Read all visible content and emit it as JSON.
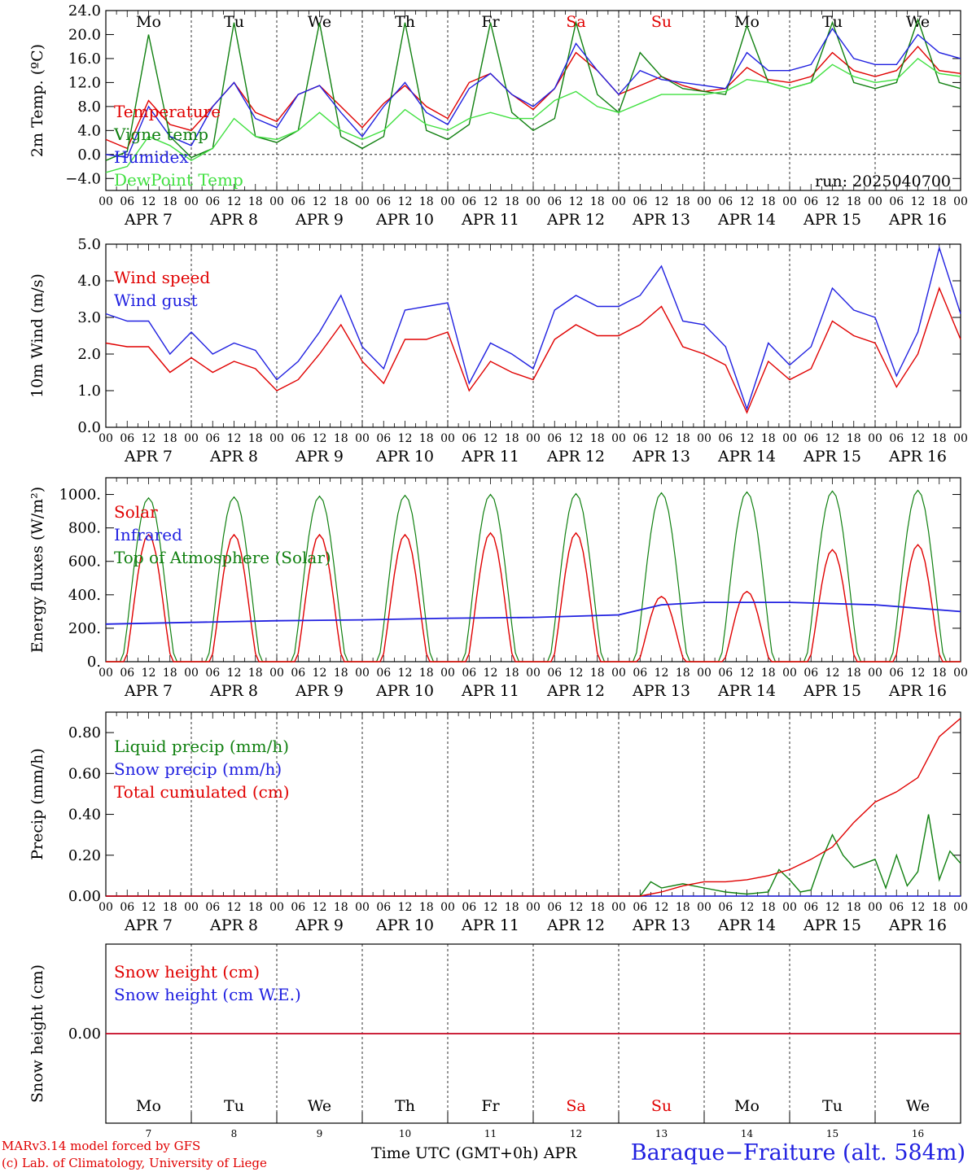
{
  "chart_data": [
    {
      "type": "line",
      "ylabel": "2m Temp. (ºC)",
      "ylim": [
        -6,
        24
      ],
      "yticks": [
        "24.0",
        "20.0",
        "16.0",
        "12.0",
        "8.0",
        "4.0",
        "0.0",
        "−4.0"
      ],
      "run_label": "run: 2025040700",
      "day_labels": [
        "Mo",
        "Tu",
        "We",
        "Th",
        "Fr",
        "Sa",
        "Su",
        "Mo",
        "Tu",
        "We"
      ],
      "date_labels": [
        "APR  7",
        "APR  8",
        "APR  9",
        "APR 10",
        "APR 11",
        "APR 12",
        "APR 13",
        "APR 14",
        "APR 15",
        "APR 16"
      ],
      "hour_labels": [
        "00",
        "06",
        "12",
        "18"
      ],
      "series": [
        {
          "name": "Temperature",
          "color": "#e00000",
          "x": [
            0,
            6,
            12,
            18,
            24,
            30,
            36,
            42,
            48,
            54,
            60,
            66,
            72,
            78,
            84,
            90,
            96,
            102,
            108,
            114,
            120,
            126,
            132,
            138,
            144,
            150,
            156,
            162,
            168,
            174,
            180,
            186,
            192,
            198,
            204,
            210,
            216,
            222,
            228,
            234,
            240
          ],
          "values": [
            2.5,
            1.0,
            9.0,
            5.0,
            4.0,
            8.0,
            12.0,
            7.0,
            5.5,
            10.0,
            11.5,
            8.0,
            4.5,
            8.5,
            11.5,
            8.0,
            6.0,
            12.0,
            13.5,
            10.0,
            7.5,
            11.0,
            17.0,
            14.0,
            10.0,
            11.5,
            13.0,
            11.5,
            10.5,
            11.0,
            14.5,
            12.5,
            12.0,
            13.0,
            17.0,
            14.0,
            13.0,
            14.0,
            18.0,
            14.0,
            13.5
          ]
        },
        {
          "name": "Vigne temp",
          "color": "#108010",
          "x": [
            0,
            6,
            12,
            18,
            24,
            30,
            36,
            42,
            48,
            54,
            60,
            66,
            72,
            78,
            84,
            90,
            96,
            102,
            108,
            114,
            120,
            126,
            132,
            138,
            144,
            150,
            156,
            162,
            168,
            174,
            180,
            186,
            192,
            198,
            204,
            210,
            216,
            222,
            228,
            234,
            240
          ],
          "values": [
            -1.0,
            0.5,
            20.0,
            3.0,
            -0.5,
            1.0,
            22.0,
            3.0,
            2.0,
            4.0,
            22.0,
            3.0,
            1.0,
            3.0,
            22.0,
            4.0,
            2.5,
            5.0,
            22.0,
            7.0,
            4.0,
            6.0,
            22.0,
            10.0,
            7.0,
            17.0,
            13.0,
            11.0,
            10.5,
            10.0,
            21.5,
            12.0,
            11.0,
            12.0,
            22.0,
            12.0,
            11.0,
            12.0,
            22.5,
            12.0,
            11.0
          ]
        },
        {
          "name": "Humidex",
          "color": "#2020e0",
          "x": [
            0,
            6,
            12,
            18,
            24,
            30,
            36,
            42,
            48,
            54,
            60,
            66,
            72,
            78,
            84,
            90,
            96,
            102,
            108,
            114,
            120,
            126,
            132,
            138,
            144,
            150,
            156,
            162,
            168,
            174,
            180,
            186,
            192,
            198,
            204,
            210,
            216,
            222,
            228,
            234,
            240
          ],
          "values": [
            0.0,
            -0.5,
            8.0,
            3.0,
            1.5,
            8.0,
            12.0,
            6.0,
            4.5,
            10.0,
            11.5,
            7.0,
            3.0,
            8.0,
            12.0,
            7.0,
            5.0,
            11.0,
            13.5,
            10.0,
            8.0,
            11.0,
            18.5,
            14.0,
            10.0,
            14.0,
            12.5,
            12.0,
            11.5,
            11.0,
            17.0,
            14.0,
            14.0,
            15.0,
            21.0,
            16.0,
            15.0,
            15.0,
            20.0,
            17.0,
            16.0
          ]
        },
        {
          "name": "DewPoint Temp",
          "color": "#40e040",
          "x": [
            0,
            6,
            12,
            18,
            24,
            30,
            36,
            42,
            48,
            54,
            60,
            66,
            72,
            78,
            84,
            90,
            96,
            102,
            108,
            114,
            120,
            126,
            132,
            138,
            144,
            150,
            156,
            162,
            168,
            174,
            180,
            186,
            192,
            198,
            204,
            210,
            216,
            222,
            228,
            234,
            240
          ],
          "values": [
            -3.0,
            -2.0,
            3.0,
            1.5,
            -1.0,
            1.0,
            6.0,
            3.0,
            2.5,
            4.0,
            7.0,
            4.0,
            2.5,
            4.0,
            7.5,
            5.0,
            4.0,
            6.0,
            7.0,
            6.0,
            6.0,
            9.0,
            10.5,
            8.0,
            7.0,
            8.5,
            10.0,
            10.0,
            10.0,
            10.5,
            12.5,
            12.0,
            11.0,
            12.0,
            15.0,
            13.0,
            12.0,
            12.5,
            16.0,
            13.5,
            13.0
          ]
        }
      ]
    },
    {
      "type": "line",
      "ylabel": "10m Wind (m/s)",
      "ylim": [
        0,
        5
      ],
      "yticks": [
        "5.0",
        "4.0",
        "3.0",
        "2.0",
        "1.0",
        "0.0"
      ],
      "date_labels": [
        "APR  7",
        "APR  8",
        "APR  9",
        "APR 10",
        "APR 11",
        "APR 12",
        "APR 13",
        "APR 14",
        "APR 15",
        "APR 16"
      ],
      "hour_labels": [
        "00",
        "06",
        "12",
        "18"
      ],
      "series": [
        {
          "name": "Wind speed",
          "color": "#e00000",
          "x": [
            0,
            6,
            12,
            18,
            24,
            30,
            36,
            42,
            48,
            54,
            60,
            66,
            72,
            78,
            84,
            90,
            96,
            102,
            108,
            114,
            120,
            126,
            132,
            138,
            144,
            150,
            156,
            162,
            168,
            174,
            180,
            186,
            192,
            198,
            204,
            210,
            216,
            222,
            228,
            234,
            240
          ],
          "values": [
            2.3,
            2.2,
            2.2,
            1.5,
            1.9,
            1.5,
            1.8,
            1.6,
            1.0,
            1.3,
            2.0,
            2.8,
            1.8,
            1.2,
            2.4,
            2.4,
            2.6,
            1.0,
            1.8,
            1.5,
            1.3,
            2.4,
            2.8,
            2.5,
            2.5,
            2.8,
            3.3,
            2.2,
            2.0,
            1.7,
            0.4,
            1.8,
            1.3,
            1.6,
            2.9,
            2.5,
            2.3,
            1.1,
            2.0,
            3.8,
            2.4
          ]
        },
        {
          "name": "Wind gust",
          "color": "#2020e0",
          "x": [
            0,
            6,
            12,
            18,
            24,
            30,
            36,
            42,
            48,
            54,
            60,
            66,
            72,
            78,
            84,
            90,
            96,
            102,
            108,
            114,
            120,
            126,
            132,
            138,
            144,
            150,
            156,
            162,
            168,
            174,
            180,
            186,
            192,
            198,
            204,
            210,
            216,
            222,
            228,
            234,
            240
          ],
          "values": [
            3.1,
            2.9,
            2.9,
            2.0,
            2.6,
            2.0,
            2.3,
            2.1,
            1.3,
            1.8,
            2.6,
            3.6,
            2.2,
            1.6,
            3.2,
            3.3,
            3.4,
            1.2,
            2.3,
            2.0,
            1.6,
            3.2,
            3.6,
            3.3,
            3.3,
            3.6,
            4.4,
            2.9,
            2.8,
            2.2,
            0.5,
            2.3,
            1.7,
            2.2,
            3.8,
            3.2,
            3.0,
            1.4,
            2.6,
            4.9,
            3.1
          ]
        }
      ]
    },
    {
      "type": "line",
      "ylabel": "Energy fluxes (W/m²)",
      "ylim": [
        0,
        1100
      ],
      "yticks": [
        "1000.",
        "800.",
        "600.",
        "400.",
        "200.",
        "0."
      ],
      "date_labels": [
        "APR  7",
        "APR  8",
        "APR  9",
        "APR 10",
        "APR 11",
        "APR 12",
        "APR 13",
        "APR 14",
        "APR 15",
        "APR 16"
      ],
      "hour_labels": [
        "00",
        "06",
        "12",
        "18"
      ],
      "series": [
        {
          "name": "Solar",
          "color": "#e00000",
          "peak_values": [
            760,
            760,
            760,
            760,
            770,
            770,
            390,
            420,
            670,
            700
          ]
        },
        {
          "name": "Infrared",
          "color": "#2020e0",
          "x": [
            0,
            24,
            48,
            72,
            96,
            120,
            144,
            156,
            168,
            192,
            216,
            240
          ],
          "values": [
            225,
            235,
            245,
            250,
            260,
            265,
            280,
            340,
            355,
            355,
            340,
            300
          ]
        },
        {
          "name": "Top of Atmosphere (Solar)",
          "color": "#108010",
          "peak_values": [
            980,
            985,
            990,
            995,
            1000,
            1005,
            1010,
            1015,
            1020,
            1025
          ]
        }
      ]
    },
    {
      "type": "line",
      "ylabel": "Precip (mm/h)",
      "ylim": [
        0,
        0.9
      ],
      "yticks": [
        "0.80",
        "0.60",
        "0.40",
        "0.20",
        "0.00"
      ],
      "date_labels": [
        "APR  7",
        "APR  8",
        "APR  9",
        "APR 10",
        "APR 11",
        "APR 12",
        "APR 13",
        "APR 14",
        "APR 15",
        "APR 16"
      ],
      "hour_labels": [
        "00",
        "06",
        "12",
        "18"
      ],
      "series": [
        {
          "name": "Liquid precip (mm/h)",
          "color": "#108010",
          "x": [
            0,
            150,
            153,
            156,
            162,
            168,
            174,
            180,
            186,
            189,
            192,
            195,
            198,
            201,
            204,
            207,
            210,
            213,
            216,
            219,
            222,
            225,
            228,
            231,
            234,
            237,
            240
          ],
          "values": [
            0,
            0,
            0.07,
            0.04,
            0.06,
            0.04,
            0.02,
            0.01,
            0.02,
            0.13,
            0.08,
            0.02,
            0.03,
            0.18,
            0.3,
            0.2,
            0.14,
            0.16,
            0.18,
            0.04,
            0.2,
            0.05,
            0.12,
            0.4,
            0.08,
            0.22,
            0.16
          ]
        },
        {
          "name": "Snow precip (mm/h)",
          "color": "#2020e0",
          "x": [
            0,
            240
          ],
          "values": [
            0,
            0
          ]
        },
        {
          "name": "Total cumulated (cm)",
          "color": "#e00000",
          "x": [
            0,
            150,
            156,
            162,
            168,
            174,
            180,
            186,
            192,
            198,
            204,
            210,
            216,
            222,
            228,
            234,
            240
          ],
          "values": [
            0,
            0,
            0.02,
            0.05,
            0.07,
            0.07,
            0.08,
            0.1,
            0.13,
            0.18,
            0.24,
            0.36,
            0.46,
            0.51,
            0.58,
            0.78,
            0.87
          ]
        }
      ]
    },
    {
      "type": "line",
      "ylabel": "Snow height (cm)",
      "ylim": [
        -1,
        1
      ],
      "yticks": [
        "0.00"
      ],
      "day_labels": [
        "Mo",
        "Tu",
        "We",
        "Th",
        "Fr",
        "Sa",
        "Su",
        "Mo",
        "Tu",
        "We"
      ],
      "day_numbers": [
        "7",
        "8",
        "9",
        "10",
        "11",
        "12",
        "13",
        "14",
        "15",
        "16"
      ],
      "series": [
        {
          "name": "Snow height (cm)",
          "color": "#e00000",
          "x": [
            0,
            240
          ],
          "values": [
            0,
            0
          ]
        },
        {
          "name": "Snow height (cm W.E.)",
          "color": "#2020e0",
          "x": [
            0,
            240
          ],
          "values": [
            0,
            0
          ]
        }
      ]
    }
  ],
  "footer": {
    "model_line": "MARv3.14 model forced by GFS",
    "credit_line": "(c) Lab. of Climatology, University of Liege",
    "xlabel": "Time UTC (GMT+0h)",
    "month": "APR",
    "station": "Baraque−Fraiture (alt. 584m)"
  },
  "colors": {
    "weekday": "#000000",
    "weekend": "#e00000",
    "axis": "#000000"
  }
}
